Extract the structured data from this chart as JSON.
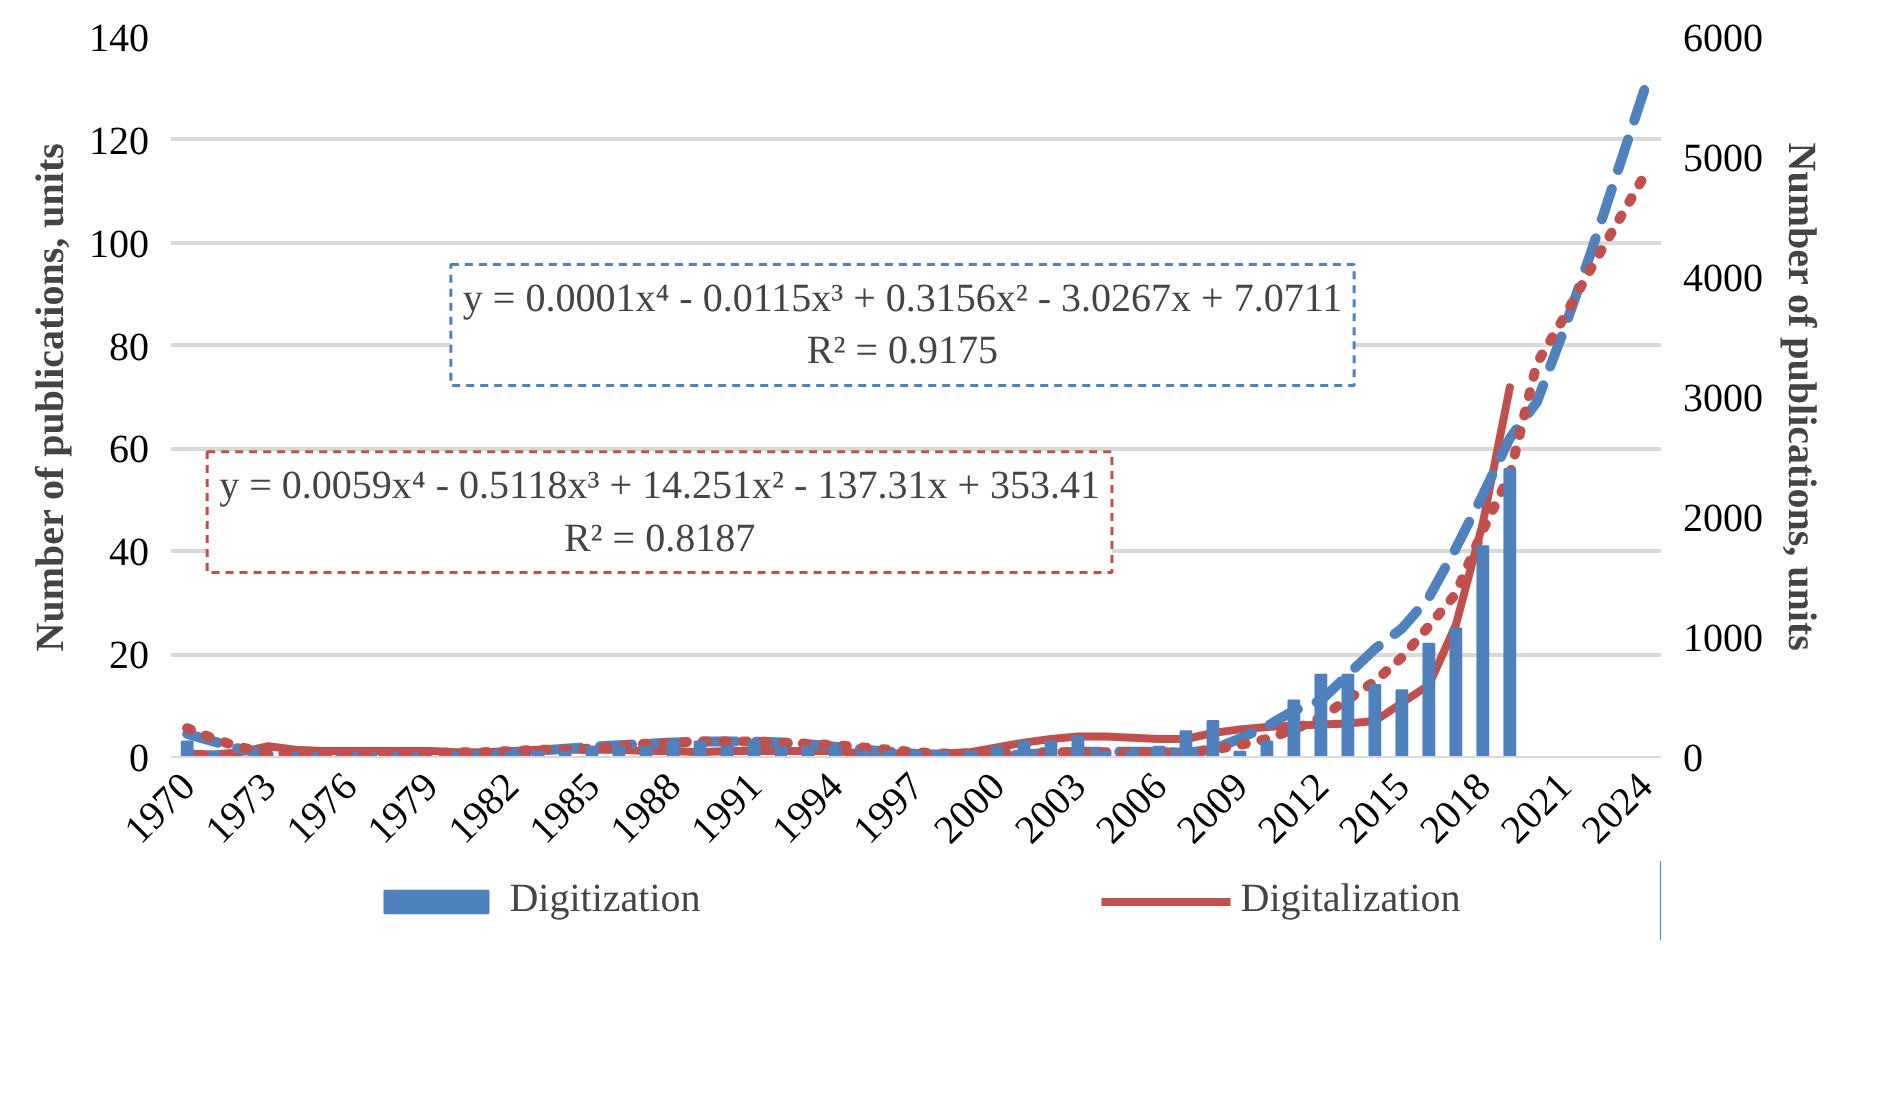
{
  "chart_data": {
    "type": "bar",
    "categories": [
      "1970",
      null,
      null,
      "1973",
      null,
      null,
      "1976",
      null,
      null,
      "1979",
      null,
      null,
      "1982",
      null,
      null,
      "1985",
      null,
      null,
      "1988",
      null,
      null,
      "1991",
      null,
      null,
      "1994",
      null,
      null,
      "1997",
      null,
      null,
      "2000",
      null,
      null,
      "2003",
      null,
      null,
      "2006",
      null,
      null,
      "2009",
      null,
      null,
      "2012",
      null,
      null,
      "2015",
      null,
      null,
      "2018",
      null,
      null,
      "2021",
      null,
      null,
      "2024"
    ],
    "series": [
      {
        "name": "Digitization",
        "color": "#4f81bd",
        "values": [
          3,
          1,
          0,
          0,
          0,
          0,
          0,
          0,
          0,
          0,
          0,
          0,
          1,
          1,
          1,
          2,
          2,
          2,
          3,
          3,
          2,
          3,
          2,
          2,
          2,
          1,
          1,
          1,
          1,
          1,
          2,
          3,
          3,
          4,
          1,
          1,
          2,
          5,
          7,
          1,
          3,
          11,
          16,
          16,
          14,
          13,
          22,
          25,
          41,
          56,
          null,
          null,
          null,
          null,
          null
        ]
      },
      {
        "name": "Digitalization",
        "type": "line",
        "axis": "y2",
        "color": "#c0504d",
        "line_style": "solid",
        "values": [
          30,
          20,
          40,
          90,
          60,
          50,
          50,
          50,
          50,
          50,
          40,
          40,
          50,
          60,
          60,
          60,
          60,
          50,
          50,
          40,
          50,
          50,
          50,
          50,
          50,
          30,
          30,
          30,
          30,
          40,
          80,
          120,
          150,
          170,
          170,
          160,
          150,
          150,
          200,
          230,
          250,
          260,
          270,
          280,
          300,
          450,
          600,
          1100,
          1950,
          3080,
          null,
          null,
          null,
          null,
          null
        ]
      },
      {
        "type": "line",
        "color": "#4f81bd",
        "line_style": "dashed",
        "values": [
          4.5,
          3,
          1.5,
          0.5,
          0,
          0,
          0,
          0,
          0,
          0,
          0.2,
          0.5,
          0.8,
          1.2,
          1.6,
          2,
          2.3,
          2.6,
          2.8,
          3,
          3,
          3,
          2.8,
          2.5,
          2,
          1.5,
          1,
          0.6,
          0.3,
          0.2,
          0.3,
          0.5,
          0.8,
          1,
          1,
          1,
          1,
          0.8,
          1.5,
          3.6,
          6,
          9,
          11,
          16,
          21,
          25,
          31,
          40.6,
          51,
          62,
          69,
          83,
          98,
          114,
          130
        ]
      },
      {
        "type": "line",
        "axis": "y2",
        "color": "#c0504d",
        "line_style": "dotted",
        "values": [
          240,
          150,
          80,
          40,
          20,
          20,
          20,
          20,
          20,
          30,
          40,
          40,
          50,
          60,
          60,
          70,
          90,
          110,
          120,
          130,
          130,
          130,
          120,
          110,
          100,
          80,
          60,
          40,
          30,
          30,
          30,
          40,
          40,
          40,
          40,
          40,
          40,
          40,
          60,
          100,
          150,
          230,
          330,
          480,
          630,
          830,
          1090,
          1360,
          1890,
          2350,
          3280,
          3660,
          4070,
          4460,
          4850
        ]
      }
    ],
    "ylabel": "Number of publications, units",
    "y2label": "Number of publications, units",
    "ylim": [
      0,
      140
    ],
    "yticks": [
      0,
      20,
      40,
      60,
      80,
      100,
      120,
      140
    ],
    "y2lim": [
      0,
      6000
    ],
    "y2ticks": [
      0,
      1000,
      2000,
      3000,
      4000,
      5000,
      6000
    ],
    "grid": "y",
    "legend": "bottom",
    "annotations": [
      "y = 0.0001x⁴ - 0.0115x³ + 0.3156x² - 3.0267x + 7.0711\nR² = 0.9175",
      "y = 0.0059x⁴ - 0.5118x³ + 14.251x² - 137.31x + 353.41\nR² = 0.8187"
    ]
  }
}
